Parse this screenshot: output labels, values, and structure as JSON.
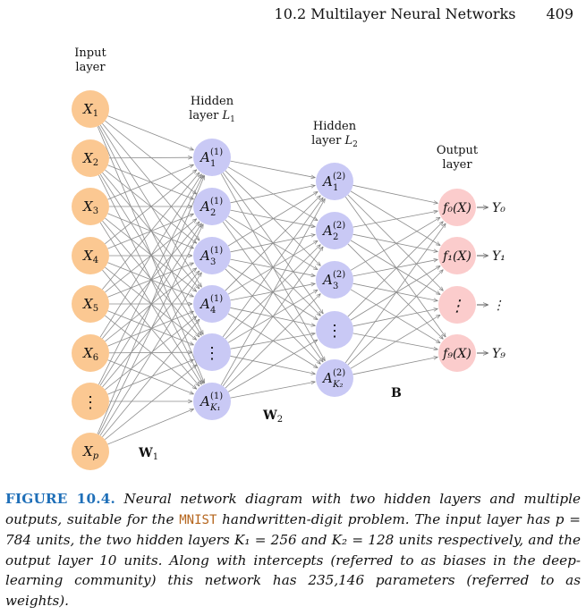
{
  "header": {
    "section": "10.2 Multilayer Neural Networks",
    "page": "409"
  },
  "colors": {
    "input_node": "#fbc892",
    "hidden_node": "#c9c9f5",
    "output_node": "#fbcccc",
    "edge": "#8c8c8c",
    "caption_label": "#1f6fb8",
    "code": "#b5651d"
  },
  "diagram": {
    "labels": {
      "input_layer": [
        "Input",
        "layer"
      ],
      "hidden1": [
        "Hidden",
        "layer L"
      ],
      "hidden1_sub": "1",
      "hidden2": [
        "Hidden",
        "layer L"
      ],
      "hidden2_sub": "2",
      "output_layer": [
        "Output",
        "layer"
      ]
    },
    "weights": {
      "w1": "W",
      "w1_sub": "1",
      "w2": "W",
      "w2_sub": "2",
      "b": "B"
    },
    "input_nodes": [
      {
        "base": "X",
        "sub": "1"
      },
      {
        "base": "X",
        "sub": "2"
      },
      {
        "base": "X",
        "sub": "3"
      },
      {
        "base": "X",
        "sub": "4"
      },
      {
        "base": "X",
        "sub": "5"
      },
      {
        "base": "X",
        "sub": "6"
      },
      {
        "base": "⋮",
        "sub": ""
      },
      {
        "base": "X",
        "sub": "p"
      }
    ],
    "hidden1_nodes": [
      {
        "base": "A",
        "sup": "(1)",
        "sub": "1"
      },
      {
        "base": "A",
        "sup": "(1)",
        "sub": "2"
      },
      {
        "base": "A",
        "sup": "(1)",
        "sub": "3"
      },
      {
        "base": "A",
        "sup": "(1)",
        "sub": "4"
      },
      {
        "base": "⋮",
        "sup": "",
        "sub": ""
      },
      {
        "base": "A",
        "sup": "(1)",
        "sub": "K₁"
      }
    ],
    "hidden2_nodes": [
      {
        "base": "A",
        "sup": "(2)",
        "sub": "1"
      },
      {
        "base": "A",
        "sup": "(2)",
        "sub": "2"
      },
      {
        "base": "A",
        "sup": "(2)",
        "sub": "3"
      },
      {
        "base": "⋮",
        "sup": "",
        "sub": ""
      },
      {
        "base": "A",
        "sup": "(2)",
        "sub": "K₂"
      }
    ],
    "output_nodes": [
      {
        "label": "f₀(X)",
        "out": "Y₀"
      },
      {
        "label": "f₁(X)",
        "out": "Y₁"
      },
      {
        "label": "⋮",
        "out": "⋮"
      },
      {
        "label": "f₉(X)",
        "out": "Y₉"
      }
    ]
  },
  "caption": {
    "label": "FIGURE 10.4.",
    "text1": " Neural network diagram with two hidden layers and multiple outputs, suitable for the ",
    "code": "MNIST",
    "text2": " handwritten-digit problem. The input layer has p = 784 units, the two hidden layers K₁ = 256 and K₂ = 128 units respectively, and the output layer 10 units. Along with intercepts (referred to as biases in the deep-learning community) this network has 235,146 parameters (referred to as weights)."
  }
}
